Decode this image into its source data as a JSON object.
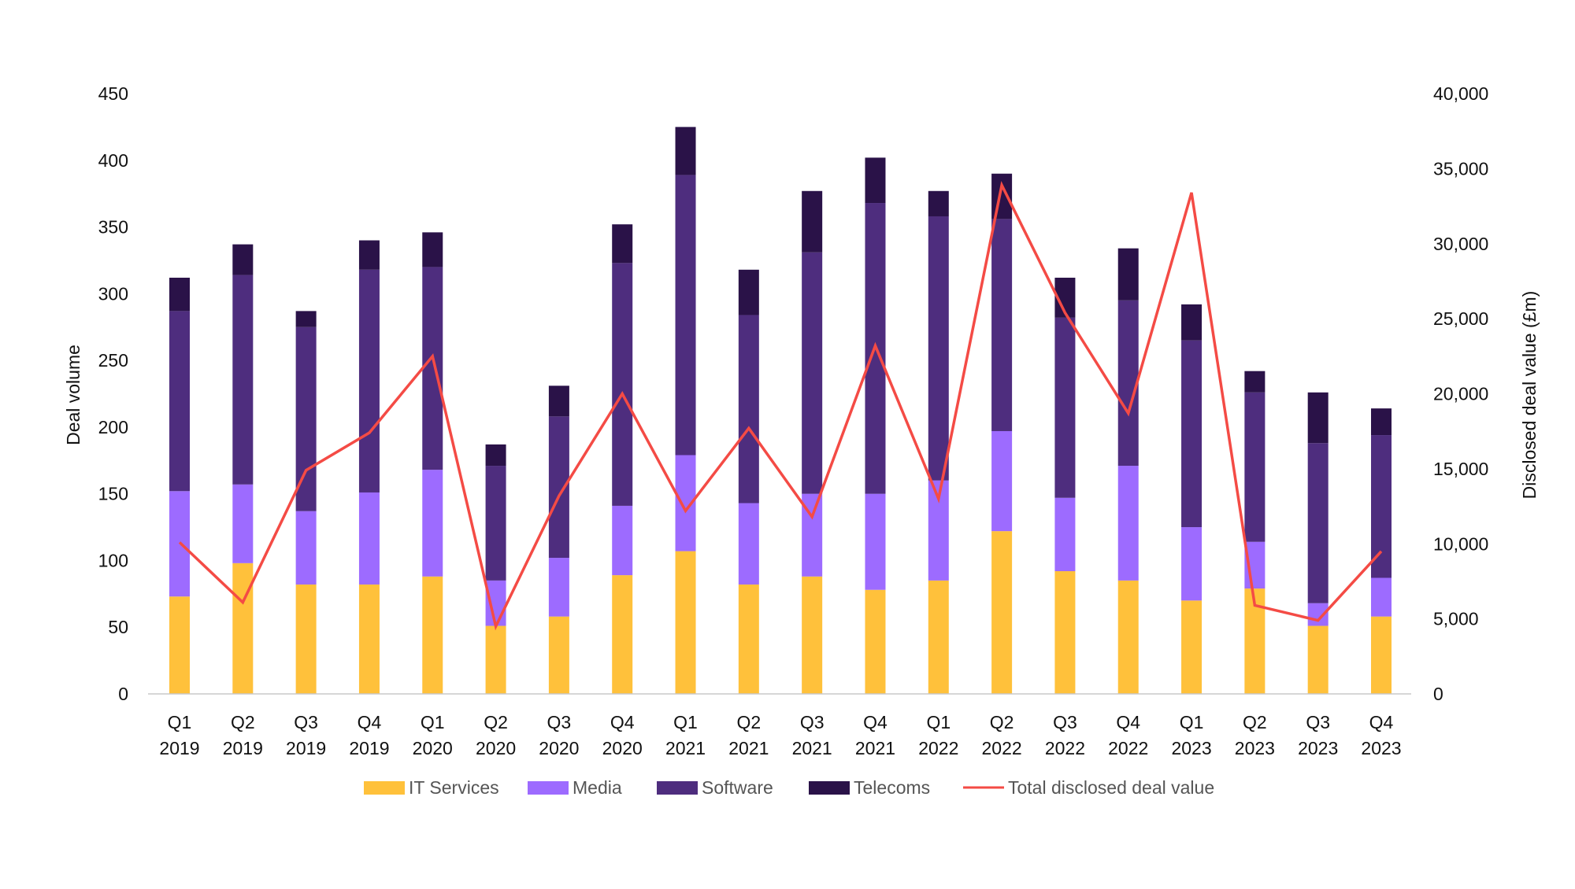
{
  "chart_data": {
    "type": "bar",
    "stacked": true,
    "title": "",
    "ylabel": "Deal volume",
    "y2label": "Disclosed deal value (£m)",
    "ylim": [
      0,
      450
    ],
    "y2lim": [
      0,
      40000
    ],
    "yticks": [
      "0",
      "50",
      "100",
      "150",
      "200",
      "250",
      "300",
      "350",
      "400",
      "450"
    ],
    "y2ticks": [
      "0",
      "5,000",
      "10,000",
      "15,000",
      "20,000",
      "25,000",
      "30,000",
      "35,000",
      "40,000"
    ],
    "grid": false,
    "legend_position": "bottom",
    "categories": [
      [
        "Q1",
        "2019"
      ],
      [
        "Q2",
        "2019"
      ],
      [
        "Q3",
        "2019"
      ],
      [
        "Q4",
        "2019"
      ],
      [
        "Q1",
        "2020"
      ],
      [
        "Q2",
        "2020"
      ],
      [
        "Q3",
        "2020"
      ],
      [
        "Q4",
        "2020"
      ],
      [
        "Q1",
        "2021"
      ],
      [
        "Q2",
        "2021"
      ],
      [
        "Q3",
        "2021"
      ],
      [
        "Q4",
        "2021"
      ],
      [
        "Q1",
        "2022"
      ],
      [
        "Q2",
        "2022"
      ],
      [
        "Q3",
        "2022"
      ],
      [
        "Q4",
        "2022"
      ],
      [
        "Q1",
        "2023"
      ],
      [
        "Q2",
        "2023"
      ],
      [
        "Q3",
        "2023"
      ],
      [
        "Q4",
        "2023"
      ]
    ],
    "series": [
      {
        "name": "IT Services",
        "type": "bar",
        "axis": "left",
        "color": "#FFC13B",
        "values": [
          73,
          98,
          82,
          82,
          88,
          51,
          58,
          89,
          107,
          82,
          88,
          78,
          85,
          122,
          92,
          85,
          70,
          79,
          51,
          58
        ]
      },
      {
        "name": "Media",
        "type": "bar",
        "axis": "left",
        "color": "#9D6BFF",
        "values": [
          79,
          59,
          55,
          69,
          80,
          34,
          44,
          52,
          72,
          61,
          62,
          72,
          75,
          75,
          55,
          86,
          55,
          35,
          17,
          29
        ]
      },
      {
        "name": "Software",
        "type": "bar",
        "axis": "left",
        "color": "#4E2D7E",
        "values": [
          135,
          157,
          138,
          167,
          152,
          86,
          106,
          182,
          210,
          141,
          181,
          218,
          198,
          159,
          135,
          124,
          140,
          112,
          120,
          107
        ]
      },
      {
        "name": "Telecoms",
        "type": "bar",
        "axis": "left",
        "color": "#2A1248",
        "values": [
          25,
          23,
          12,
          22,
          26,
          16,
          23,
          29,
          36,
          34,
          46,
          34,
          19,
          34,
          30,
          39,
          27,
          16,
          38,
          20
        ]
      },
      {
        "name": "Total disclosed deal value",
        "type": "line",
        "axis": "right",
        "color": "#F44B45",
        "values": [
          10100,
          6100,
          14900,
          17400,
          22500,
          4500,
          13200,
          20000,
          12200,
          17700,
          11800,
          23200,
          13000,
          33900,
          25400,
          18700,
          33400,
          5900,
          4900,
          9500
        ]
      }
    ]
  }
}
